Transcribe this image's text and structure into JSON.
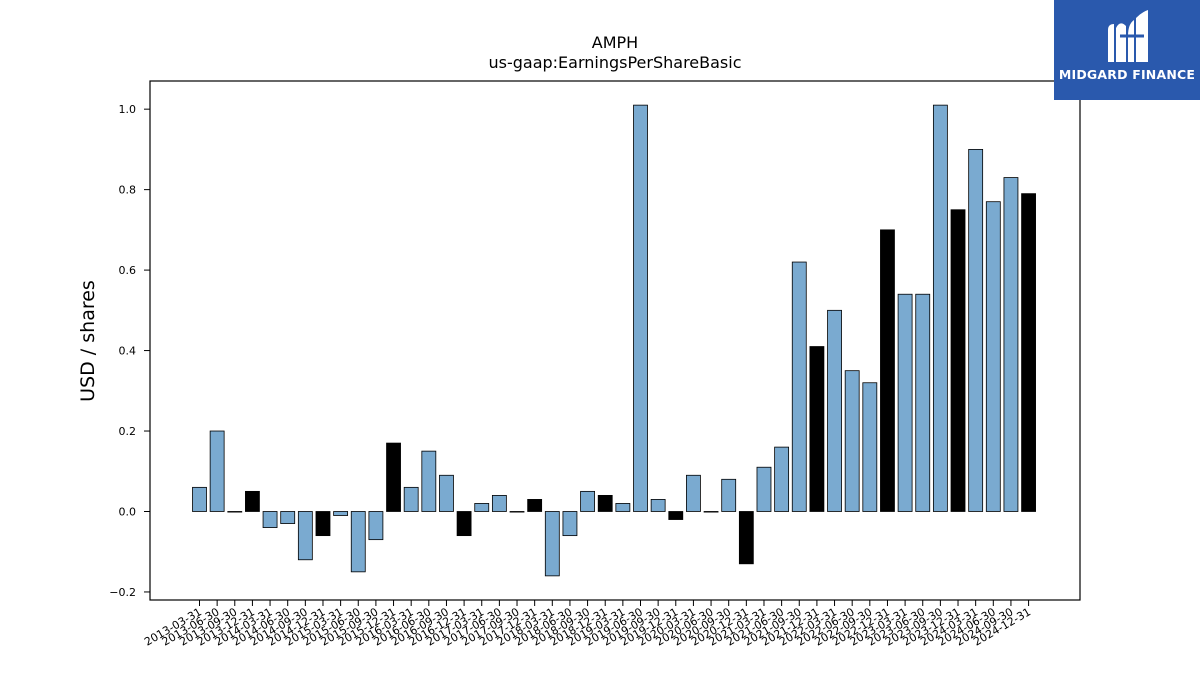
{
  "brand": {
    "name": "MIDGARD FINANCE",
    "logo_icon": "midgard-m-icon",
    "background": "#2a59ad"
  },
  "colors": {
    "annual": "#000000",
    "quarterly": "#7aaad0"
  },
  "chart_data": {
    "type": "bar",
    "title": "AMPH",
    "subtitle": "us-gaap:EarningsPerShareBasic",
    "xlabel": "",
    "ylabel": "USD / shares",
    "ylim": [
      -0.22,
      1.07
    ],
    "yticks": [
      -0.2,
      0.0,
      0.2,
      0.4,
      0.6,
      0.8,
      1.0
    ],
    "ytick_labels": [
      "−0.2",
      "0.0",
      "0.2",
      "0.4",
      "0.6",
      "0.8",
      "1.0"
    ],
    "grid": false,
    "categories": [
      "2013-03-31",
      "2013-06-30",
      "2013-09-30",
      "2013-12-31",
      "2014-03-31",
      "2014-06-30",
      "2014-09-30",
      "2014-12-31",
      "2015-03-31",
      "2015-06-30",
      "2015-09-30",
      "2015-12-31",
      "2016-03-31",
      "2016-06-30",
      "2016-09-30",
      "2016-12-31",
      "2017-03-31",
      "2017-06-30",
      "2017-09-30",
      "2017-12-31",
      "2018-03-31",
      "2018-06-30",
      "2018-09-30",
      "2018-12-31",
      "2019-03-31",
      "2019-06-30",
      "2019-09-30",
      "2019-12-31",
      "2020-03-31",
      "2020-06-30",
      "2020-09-30",
      "2020-12-31",
      "2021-03-31",
      "2021-06-30",
      "2021-09-30",
      "2021-12-31",
      "2022-03-31",
      "2022-06-30",
      "2022-09-30",
      "2022-12-31",
      "2023-03-31",
      "2023-06-30",
      "2023-09-30",
      "2023-12-31",
      "2024-03-31",
      "2024-06-30",
      "2024-09-30",
      "2024-12-31"
    ],
    "values": [
      0.06,
      0.2,
      0.0,
      0.05,
      -0.04,
      -0.03,
      -0.12,
      -0.06,
      -0.01,
      -0.15,
      -0.07,
      0.17,
      0.06,
      0.15,
      0.09,
      -0.06,
      0.02,
      0.04,
      0.0,
      0.03,
      -0.16,
      -0.06,
      0.05,
      0.04,
      0.02,
      1.01,
      0.03,
      -0.02,
      0.09,
      0.0,
      0.08,
      -0.13,
      0.11,
      0.16,
      0.62,
      0.41,
      0.5,
      0.35,
      0.32,
      0.7,
      0.54,
      0.54,
      1.01,
      0.75,
      0.9,
      0.77,
      0.83,
      0.79
    ],
    "period": [
      "Q",
      "Q",
      "Q",
      "FY",
      "Q",
      "Q",
      "Q",
      "FY",
      "Q",
      "Q",
      "Q",
      "FY",
      "Q",
      "Q",
      "Q",
      "FY",
      "Q",
      "Q",
      "Q",
      "FY",
      "Q",
      "Q",
      "Q",
      "FY",
      "Q",
      "Q",
      "Q",
      "FY",
      "Q",
      "Q",
      "Q",
      "FY",
      "Q",
      "Q",
      "Q",
      "FY",
      "Q",
      "Q",
      "Q",
      "FY",
      "Q",
      "Q",
      "Q",
      "FY",
      "Q",
      "Q",
      "Q",
      "FY"
    ]
  }
}
